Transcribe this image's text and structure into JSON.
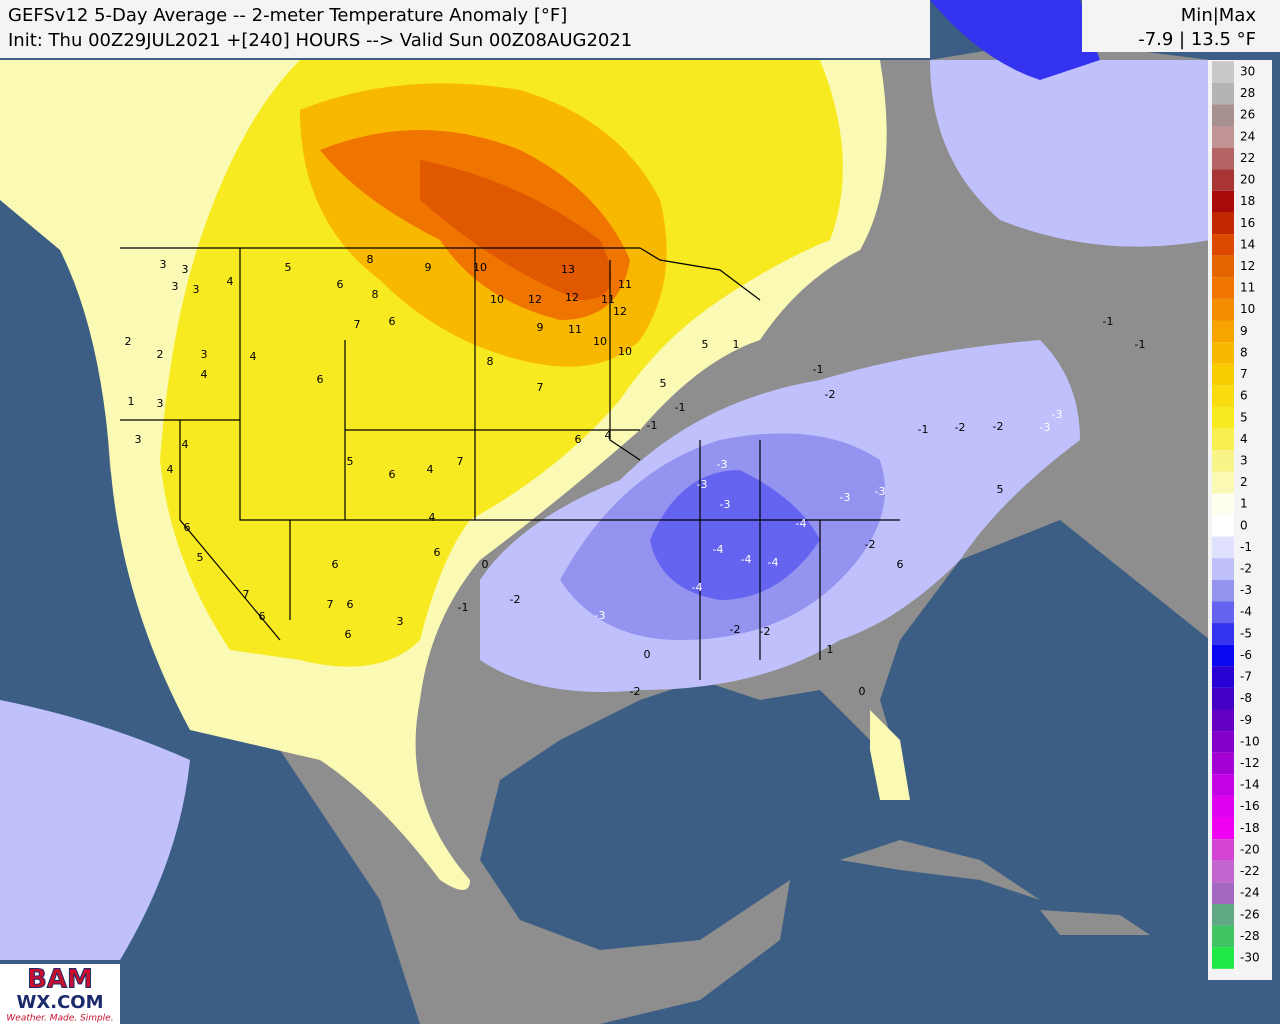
{
  "header": {
    "title": "GEFSv12 5-Day Average -- 2-meter Temperature Anomaly [°F]",
    "subtitle": "Init: Thu 00Z29JUL2021 +[240] HOURS --> Valid Sun 00Z08AUG2021"
  },
  "stats": {
    "label": "Min|Max",
    "value": "-7.9 | 13.5 °F"
  },
  "colorbar": {
    "levels": [
      {
        "label": 30,
        "color": "#c8c8c8"
      },
      {
        "label": 28,
        "color": "#b4b4b4"
      },
      {
        "label": 26,
        "color": "#a89090"
      },
      {
        "label": 24,
        "color": "#c09494"
      },
      {
        "label": 22,
        "color": "#b46464"
      },
      {
        "label": 20,
        "color": "#a83434"
      },
      {
        "label": 18,
        "color": "#a80a0a"
      },
      {
        "label": 16,
        "color": "#c42800"
      },
      {
        "label": 14,
        "color": "#dc4a00"
      },
      {
        "label": 12,
        "color": "#e46400"
      },
      {
        "label": 11,
        "color": "#f07400"
      },
      {
        "label": 10,
        "color": "#f48c00"
      },
      {
        "label": 9,
        "color": "#f8a400"
      },
      {
        "label": 8,
        "color": "#f8b800"
      },
      {
        "label": 7,
        "color": "#f8cc00"
      },
      {
        "label": 6,
        "color": "#f8dc10"
      },
      {
        "label": 5,
        "color": "#f8ea20"
      },
      {
        "label": 4,
        "color": "#f8f050"
      },
      {
        "label": 3,
        "color": "#f8f488"
      },
      {
        "label": 2,
        "color": "#fafab4"
      },
      {
        "label": 1,
        "color": "#fffff0"
      },
      {
        "label": 0,
        "color": "#ffffff"
      },
      {
        "label": -1,
        "color": "#e0e0ff"
      },
      {
        "label": -2,
        "color": "#c0c0fc"
      },
      {
        "label": -3,
        "color": "#9494f0"
      },
      {
        "label": -4,
        "color": "#6464f0"
      },
      {
        "label": -5,
        "color": "#3434f0"
      },
      {
        "label": -6,
        "color": "#0808f0"
      },
      {
        "label": -7,
        "color": "#2800d4"
      },
      {
        "label": -8,
        "color": "#4400c4"
      },
      {
        "label": -9,
        "color": "#6400c4"
      },
      {
        "label": -10,
        "color": "#8400c8"
      },
      {
        "label": -12,
        "color": "#a400d4"
      },
      {
        "label": -14,
        "color": "#c400e4"
      },
      {
        "label": -16,
        "color": "#e000f0"
      },
      {
        "label": -18,
        "color": "#f000f0"
      },
      {
        "label": -20,
        "color": "#d444d4"
      },
      {
        "label": -22,
        "color": "#c464d0"
      },
      {
        "label": -24,
        "color": "#a468c0"
      },
      {
        "label": -26,
        "color": "#60a884"
      },
      {
        "label": -28,
        "color": "#40c464"
      },
      {
        "label": -30,
        "color": "#20e844"
      }
    ]
  },
  "map_labels": [
    3,
    3,
    3,
    3,
    4,
    2,
    2,
    3,
    4,
    1,
    3,
    3,
    4,
    4,
    6,
    5,
    7,
    6,
    4,
    5,
    6,
    8,
    8,
    7,
    6,
    9,
    10,
    10,
    12,
    12,
    11,
    12,
    11,
    9,
    11,
    10,
    10,
    8,
    7,
    6,
    4,
    7,
    4,
    6,
    5,
    6,
    6,
    7,
    6,
    6,
    3,
    6,
    4,
    -1,
    -3,
    -3,
    -3,
    -4,
    -4,
    -4,
    -4,
    -4,
    -3,
    -3,
    -1,
    -2,
    -2,
    -3,
    -3,
    5,
    -2,
    6,
    1,
    0,
    -3,
    0,
    -2,
    0,
    -1,
    -2,
    -2,
    -2,
    -1,
    -2,
    1,
    5,
    5,
    -1,
    -1,
    -1,
    13
  ],
  "logo": {
    "name": "BAM",
    "site": "WX.COM",
    "tagline": "Weather. Made. Simple."
  }
}
